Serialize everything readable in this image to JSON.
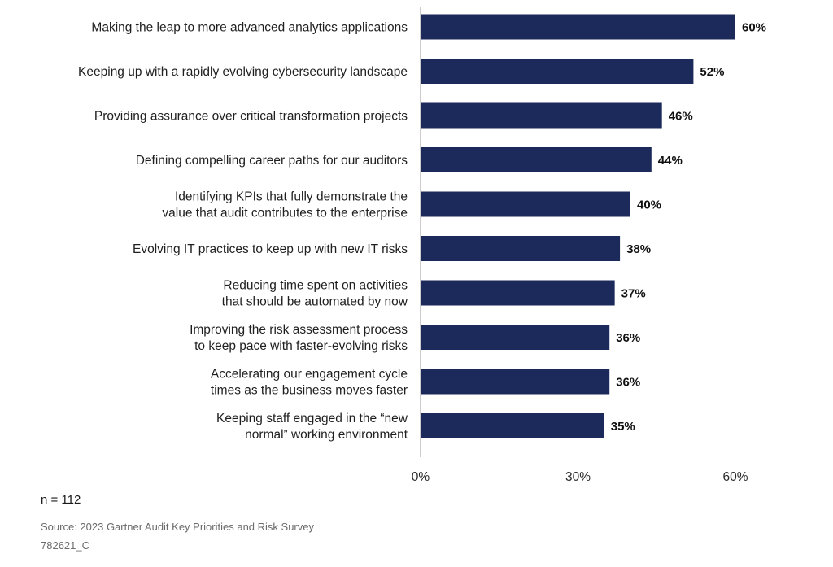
{
  "chart_data": {
    "type": "bar",
    "orientation": "horizontal",
    "categories": [
      [
        "Making the leap to more advanced analytics applications"
      ],
      [
        "Keeping up with a rapidly evolving cybersecurity landscape"
      ],
      [
        "Providing assurance over critical transformation projects"
      ],
      [
        "Defining compelling career paths for our auditors"
      ],
      [
        "Identifying KPIs that fully demonstrate the",
        "value that audit contributes to the enterprise"
      ],
      [
        "Evolving IT practices to keep up with new IT risks"
      ],
      [
        "Reducing time spent on activities",
        "that should be automated by now"
      ],
      [
        "Improving the risk assessment process",
        "to keep pace with faster-evolving risks"
      ],
      [
        "Accelerating our engagement cycle",
        "times as the business moves faster"
      ],
      [
        "Keeping staff engaged in the “new",
        "normal” working environment"
      ]
    ],
    "values": [
      60,
      52,
      46,
      44,
      40,
      38,
      37,
      36,
      36,
      35
    ],
    "value_labels": [
      "60%",
      "52%",
      "46%",
      "44%",
      "40%",
      "38%",
      "37%",
      "36%",
      "36%",
      "35%"
    ],
    "xlim": [
      0,
      60
    ],
    "xticks": [
      0,
      30,
      60
    ],
    "xtick_labels": [
      "0%",
      "30%",
      "60%"
    ],
    "grid": false,
    "bar_color": "#1b2a5a"
  },
  "footer": {
    "sample_size": "n = 112",
    "source": "Source: 2023 Gartner Audit Key Priorities and Risk Survey",
    "figure_id": "782621_C"
  }
}
